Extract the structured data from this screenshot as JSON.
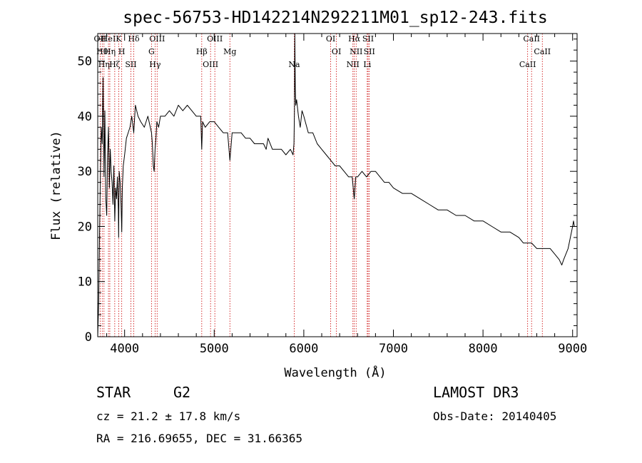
{
  "chart_data": {
    "type": "line",
    "title": "spec-56753-HD142214N292211M01_sp12-243.fits",
    "xlabel": "Wavelength (Å)",
    "ylabel": "Flux (relative)",
    "xlim": [
      3700,
      9050
    ],
    "ylim": [
      0,
      55
    ],
    "xticks": [
      4000,
      5000,
      6000,
      7000,
      8000,
      9000
    ],
    "yticks": [
      0,
      10,
      20,
      30,
      40,
      50
    ],
    "series": [
      {
        "name": "flux",
        "x": [
          3700,
          3710,
          3720,
          3730,
          3740,
          3750,
          3760,
          3770,
          3780,
          3790,
          3800,
          3810,
          3820,
          3830,
          3840,
          3850,
          3860,
          3870,
          3880,
          3890,
          3900,
          3910,
          3920,
          3930,
          3933,
          3940,
          3950,
          3960,
          3968,
          3975,
          3985,
          4000,
          4020,
          4040,
          4060,
          4080,
          4102,
          4120,
          4150,
          4180,
          4220,
          4260,
          4300,
          4310,
          4320,
          4330,
          4340,
          4350,
          4360,
          4380,
          4400,
          4450,
          4500,
          4550,
          4600,
          4650,
          4700,
          4750,
          4800,
          4850,
          4861,
          4870,
          4900,
          4950,
          5000,
          5050,
          5100,
          5150,
          5175,
          5200,
          5250,
          5300,
          5350,
          5400,
          5450,
          5500,
          5550,
          5580,
          5600,
          5650,
          5700,
          5750,
          5800,
          5850,
          5880,
          5890,
          5896,
          5900,
          5905,
          5910,
          5920,
          5940,
          5960,
          5980,
          6000,
          6050,
          6100,
          6150,
          6200,
          6250,
          6300,
          6350,
          6400,
          6450,
          6500,
          6540,
          6563,
          6580,
          6600,
          6650,
          6700,
          6750,
          6800,
          6850,
          6900,
          6950,
          7000,
          7100,
          7200,
          7300,
          7400,
          7500,
          7600,
          7700,
          7800,
          7900,
          8000,
          8100,
          8200,
          8300,
          8400,
          8450,
          8498,
          8542,
          8600,
          8662,
          8700,
          8750,
          8800,
          8850,
          8880,
          8900,
          8950,
          9000,
          9010,
          9020
        ],
        "y": [
          0,
          6,
          18,
          30,
          38,
          35,
          47,
          29,
          41,
          25,
          22,
          33,
          38,
          27,
          34,
          30,
          28,
          24,
          31,
          21,
          27,
          25,
          29,
          23,
          18,
          30,
          28,
          24,
          19,
          27,
          31,
          33,
          36,
          37,
          38,
          40,
          37,
          42,
          40,
          39,
          38,
          40,
          37,
          35,
          31,
          30,
          34,
          36,
          39,
          38,
          40,
          40,
          41,
          40,
          42,
          41,
          42,
          41,
          40,
          40,
          34,
          39,
          38,
          39,
          39,
          38,
          37,
          37,
          32,
          37,
          37,
          37,
          36,
          36,
          35,
          35,
          35,
          34,
          36,
          34,
          34,
          34,
          33,
          34,
          33,
          35,
          41,
          55,
          45,
          42,
          43,
          40,
          38,
          41,
          40,
          37,
          37,
          35,
          34,
          33,
          32,
          31,
          31,
          30,
          29,
          29,
          25,
          29,
          29,
          30,
          29,
          30,
          30,
          29,
          28,
          28,
          27,
          26,
          26,
          25,
          24,
          23,
          23,
          22,
          22,
          21,
          21,
          20,
          19,
          19,
          18,
          17,
          17,
          17,
          16,
          16,
          16,
          16,
          15,
          14,
          13,
          14,
          16,
          20,
          21,
          20
        ]
      }
    ],
    "line_markers": [
      {
        "wl": 3727,
        "label": "OII"
      },
      {
        "wl": 3750,
        "label": "Hθ"
      },
      {
        "wl": 3770,
        "label": "Hη"
      },
      {
        "wl": 3820,
        "label": "HeI"
      },
      {
        "wl": 3835,
        "label": "Hη"
      },
      {
        "wl": 3890,
        "label": "Hζ"
      },
      {
        "wl": 3934,
        "label": "K"
      },
      {
        "wl": 3968,
        "label": "H"
      },
      {
        "wl": 4070,
        "label": "SII"
      },
      {
        "wl": 4102,
        "label": "Hδ"
      },
      {
        "wl": 4300,
        "label": "G"
      },
      {
        "wl": 4340,
        "label": "Hγ"
      },
      {
        "wl": 4363,
        "label": "OIII"
      },
      {
        "wl": 4861,
        "label": "Hβ"
      },
      {
        "wl": 4959,
        "label": "OIII"
      },
      {
        "wl": 5007,
        "label": "OIII"
      },
      {
        "wl": 5175,
        "label": "Mg"
      },
      {
        "wl": 5893,
        "label": "Na"
      },
      {
        "wl": 6300,
        "label": "OI"
      },
      {
        "wl": 6364,
        "label": "OI"
      },
      {
        "wl": 6548,
        "label": "NII"
      },
      {
        "wl": 6563,
        "label": "Hα"
      },
      {
        "wl": 6584,
        "label": "NII"
      },
      {
        "wl": 6708,
        "label": "Li"
      },
      {
        "wl": 6717,
        "label": "SII"
      },
      {
        "wl": 6731,
        "label": "SII"
      },
      {
        "wl": 8498,
        "label": "CaII"
      },
      {
        "wl": 8542,
        "label": "CaII"
      },
      {
        "wl": 8662,
        "label": "CaII"
      }
    ],
    "marker_color": "#cc0000",
    "line_color": "#000000"
  },
  "info": {
    "class": "STAR",
    "subclass": "G2",
    "survey": "LAMOST DR3",
    "cz": "cz = 21.2 ± 17.8 km/s",
    "obs_date": "Obs-Date: 20140405",
    "coords": "RA = 216.69655, DEC =  31.66365"
  }
}
